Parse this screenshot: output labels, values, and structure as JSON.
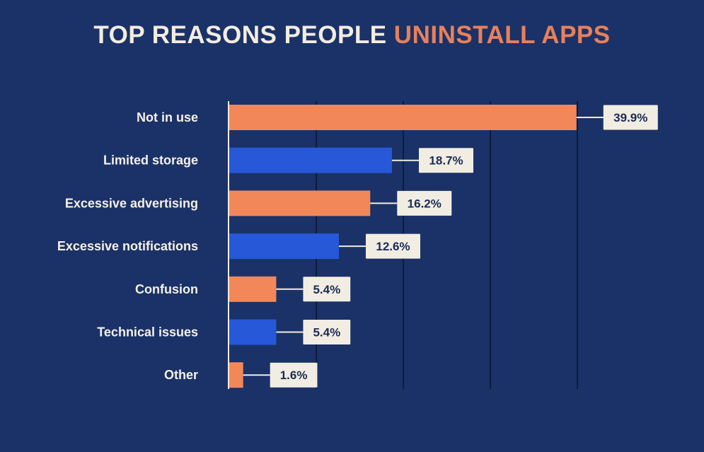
{
  "title": {
    "prefix": "TOP REASONS PEOPLE",
    "highlight": "UNINSTALL APPS"
  },
  "colors": {
    "background": "#1a3267",
    "orange": "#f2875a",
    "blue": "#2658d8",
    "label_box": "#f2ede2",
    "value_text": "#1a2b55",
    "title_accent": "#e9805a"
  },
  "chart_data": {
    "type": "bar",
    "orientation": "horizontal",
    "title": "TOP REASONS PEOPLE UNINSTALL APPS",
    "xlabel": "",
    "ylabel": "",
    "xlim": [
      0,
      40
    ],
    "grid": true,
    "categories": [
      "Not in use",
      "Limited storage",
      "Excessive advertising",
      "Excessive notifications",
      "Confusion",
      "Technical issues",
      "Other"
    ],
    "values": [
      39.9,
      18.7,
      16.2,
      12.6,
      5.4,
      5.4,
      1.6
    ],
    "value_labels": [
      "39.9%",
      "18.7%",
      "16.2%",
      "12.6%",
      "5.4%",
      "5.4%",
      "1.6%"
    ],
    "bar_colors": [
      "orange",
      "blue",
      "orange",
      "blue",
      "orange",
      "blue",
      "orange"
    ]
  }
}
